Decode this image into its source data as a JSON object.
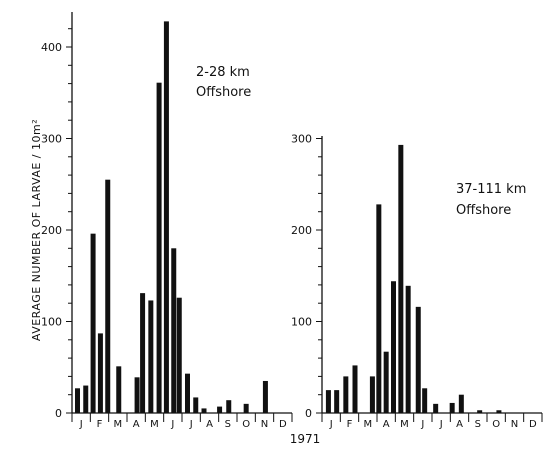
{
  "chart_data": {
    "type": "bar",
    "ylabel": "AVERAGE NUMBER OF LARVAE / 10m²",
    "xlabel": "1971",
    "ylim": [
      0,
      440
    ],
    "yticks": [
      0,
      100,
      200,
      300,
      400
    ],
    "months": [
      "J",
      "F",
      "M",
      "A",
      "M",
      "J",
      "J",
      "A",
      "S",
      "O",
      "N",
      "D"
    ],
    "grid": false,
    "panels": [
      {
        "annotation": [
          "2-28 km",
          "Offshore"
        ],
        "values": [
          {
            "month": 0.3,
            "value": 27
          },
          {
            "month": 0.75,
            "value": 30
          },
          {
            "month": 1.15,
            "value": 196
          },
          {
            "month": 1.55,
            "value": 87
          },
          {
            "month": 1.95,
            "value": 255
          },
          {
            "month": 2.55,
            "value": 51
          },
          {
            "month": 3.55,
            "value": 39
          },
          {
            "month": 3.85,
            "value": 131
          },
          {
            "month": 4.3,
            "value": 123
          },
          {
            "month": 4.75,
            "value": 361
          },
          {
            "month": 5.15,
            "value": 428
          },
          {
            "month": 5.55,
            "value": 180
          },
          {
            "month": 5.85,
            "value": 126
          },
          {
            "month": 6.3,
            "value": 43
          },
          {
            "month": 6.75,
            "value": 17
          },
          {
            "month": 7.2,
            "value": 5
          },
          {
            "month": 8.05,
            "value": 7
          },
          {
            "month": 8.55,
            "value": 14
          },
          {
            "month": 9.5,
            "value": 10
          },
          {
            "month": 10.55,
            "value": 35
          }
        ]
      },
      {
        "annotation": [
          "37-111 km",
          "Offshore"
        ],
        "values": [
          {
            "month": 0.35,
            "value": 25
          },
          {
            "month": 0.8,
            "value": 25
          },
          {
            "month": 1.3,
            "value": 40
          },
          {
            "month": 1.8,
            "value": 52
          },
          {
            "month": 2.75,
            "value": 40
          },
          {
            "month": 3.1,
            "value": 228
          },
          {
            "month": 3.5,
            "value": 67
          },
          {
            "month": 3.9,
            "value": 144
          },
          {
            "month": 4.3,
            "value": 293
          },
          {
            "month": 4.7,
            "value": 139
          },
          {
            "month": 5.25,
            "value": 116
          },
          {
            "month": 5.6,
            "value": 27
          },
          {
            "month": 6.2,
            "value": 10
          },
          {
            "month": 7.1,
            "value": 11
          },
          {
            "month": 7.6,
            "value": 20
          },
          {
            "month": 8.6,
            "value": 3
          },
          {
            "month": 9.65,
            "value": 3
          }
        ]
      }
    ]
  }
}
